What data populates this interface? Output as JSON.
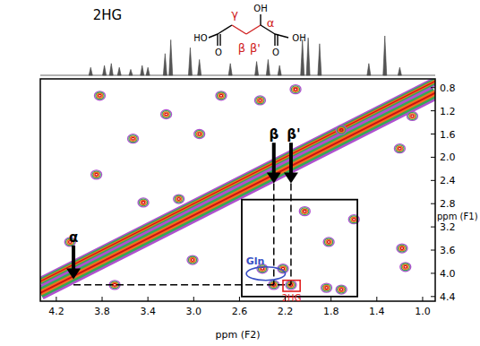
{
  "chart_data": {
    "type": "contour",
    "xlabel": "ppm (F2)",
    "ylabel": "ppm (F1)",
    "xlim": [
      4.34,
      0.89
    ],
    "ylim": [
      0.65,
      4.48
    ],
    "xticks": [
      4.2,
      3.8,
      3.4,
      {
        "value": 3,
        "label": "3.0"
      },
      2.6,
      2.2,
      1.8,
      1.4,
      {
        "value": 1,
        "label": "1.0"
      }
    ],
    "yticks": [
      0.8,
      1.2,
      1.6,
      {
        "value": 2,
        "label": "2.0"
      },
      2.4,
      2.8,
      3.2,
      3.6,
      {
        "value": 4,
        "label": "4.0"
      },
      4.4
    ],
    "structure": {
      "title": "2HG",
      "texts": [
        "HO",
        "O",
        "OH",
        "O",
        "OH"
      ],
      "labels": [
        "γ",
        "β",
        "β'",
        "α"
      ]
    },
    "projection": {
      "ylim": [
        0,
        100
      ],
      "x": [
        3.9,
        3.78,
        3.72,
        3.65,
        3.55,
        3.45,
        3.4,
        3.25,
        3.2,
        3.03,
        2.95,
        2.68,
        2.45,
        2.35,
        2.25,
        2.05,
        2.0,
        1.9,
        1.47,
        1.33,
        1.2
      ],
      "values": [
        20,
        25,
        30,
        20,
        15,
        25,
        20,
        55,
        90,
        70,
        40,
        30,
        35,
        40,
        25,
        90,
        95,
        80,
        30,
        100,
        20
      ]
    },
    "diagonals": [
      {
        "x": [
          4.34,
          0.89
        ],
        "y": [
          4.34,
          0.89
        ]
      },
      {
        "x": [
          4.34,
          0.89
        ],
        "y": [
          4.14,
          0.69
        ]
      }
    ],
    "peaks": {
      "x": [
        3.82,
        3.53,
        3.24,
        2.95,
        2.76,
        3.13,
        3.44,
        3.85,
        1.2,
        1.18,
        1.15,
        2.03,
        1.82,
        1.6,
        2.4,
        2.22,
        2.3,
        2.15,
        1.84,
        1.71,
        1.09,
        1.71,
        2.11,
        2.42,
        3.01,
        4.08,
        3.69
      ],
      "y": [
        0.94,
        1.68,
        1.26,
        1.6,
        0.94,
        2.72,
        2.78,
        2.3,
        1.85,
        3.57,
        3.89,
        2.93,
        3.46,
        3.07,
        3.92,
        3.92,
        4.2,
        4.2,
        4.25,
        4.28,
        1.29,
        1.53,
        0.83,
        1.02,
        3.77,
        3.46,
        4.2
      ]
    },
    "arrows": [
      {
        "label": "α",
        "x": 4.05,
        "y": [
          3.52,
          4.1
        ]
      },
      {
        "label": "β",
        "x": 2.3,
        "y": [
          1.75,
          2.45
        ]
      },
      {
        "label": "β'",
        "x": 2.15,
        "y": [
          1.75,
          2.45
        ]
      }
    ],
    "guides": [
      {
        "x": [
          2.3,
          2.3
        ],
        "y": [
          2.45,
          4.2
        ]
      },
      {
        "x": [
          2.15,
          2.15
        ],
        "y": [
          2.45,
          4.2
        ]
      },
      {
        "x": [
          4.05,
          2.15
        ],
        "y": [
          4.2,
          4.2
        ]
      }
    ],
    "ellipses": [
      {
        "label": "Gln",
        "color": "#3a4fc4",
        "x": [
          2.54,
          2.2
        ],
        "y": [
          3.89,
          4.12
        ]
      }
    ],
    "boxes": [
      {
        "label": "2HG",
        "color": "#e02020",
        "x": [
          2.22,
          2.07
        ],
        "y": [
          4.12,
          4.31
        ]
      },
      {
        "color": "#000000",
        "x": [
          2.58,
          1.57
        ],
        "y": [
          2.73,
          4.4
        ]
      }
    ]
  }
}
